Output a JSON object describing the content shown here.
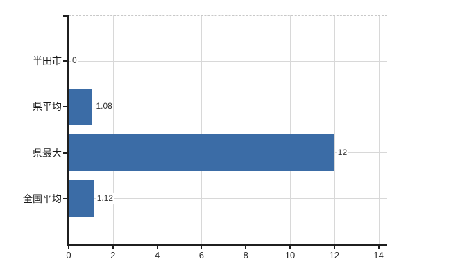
{
  "chart_data": {
    "type": "bar",
    "orientation": "horizontal",
    "title": "",
    "xlabel": "",
    "ylabel": "",
    "categories": [
      "半田市",
      "県平均",
      "県最大",
      "全国平均"
    ],
    "values": [
      0,
      1.08,
      12,
      1.12
    ],
    "data_labels": [
      "0",
      "1.08",
      "12",
      "1.12"
    ],
    "x_ticks": [
      0,
      2,
      4,
      6,
      8,
      10,
      12,
      14
    ],
    "x_tick_labels": [
      "0",
      "2",
      "4",
      "6",
      "8",
      "10",
      "12",
      "14"
    ],
    "xlim": [
      0,
      14.4
    ],
    "grid": true,
    "legend": "none",
    "colors": {
      "bar": "#3b6ca6",
      "gridline": "#d8d8d8",
      "top_border": "#c8c8c8",
      "axis": "#1f1f1f",
      "category_label": "#1a1a1a",
      "tick_label": "#2b2b2b",
      "value_label": "#333333",
      "background": "#ffffff"
    }
  }
}
